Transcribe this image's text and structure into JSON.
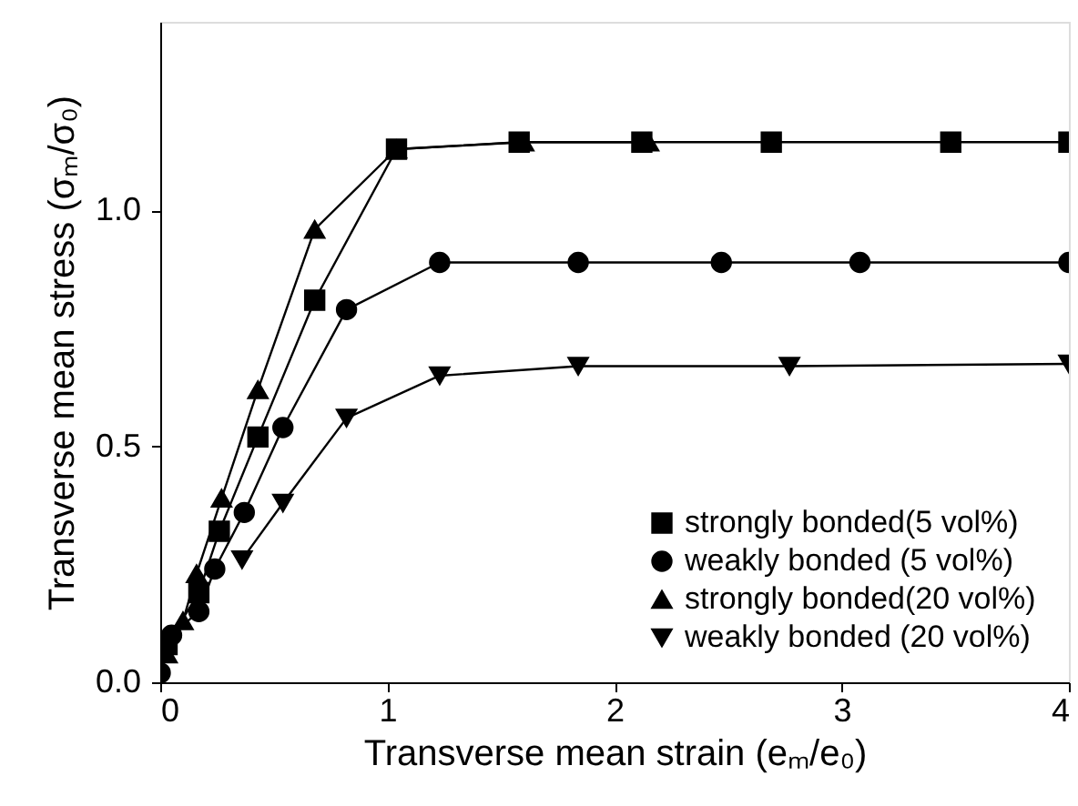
{
  "chart_data": {
    "type": "line",
    "xlabel": "Transverse mean strain (eₘ/e₀)",
    "ylabel": "Transverse mean stress (σₘ/σ₀)",
    "xlim": [
      0,
      4
    ],
    "ylim": [
      0,
      1.4
    ],
    "xticks": [
      0,
      1,
      2,
      3,
      4
    ],
    "yticks": [
      {
        "value": 0,
        "label": "0.0"
      },
      {
        "value": 0.5,
        "label": "0.5"
      },
      {
        "value": 1,
        "label": "1.0"
      }
    ],
    "grid": false,
    "legend": "bottom right",
    "line_style": "solid",
    "series": [
      {
        "name": "strongly bonded(5 vol%)",
        "color": "#000000",
        "marker": "square",
        "x": [
          0.03,
          0.17,
          0.26,
          0.43,
          0.68,
          1.04,
          1.58,
          2.12,
          2.69,
          3.48,
          4.0
        ],
        "values": [
          0.08,
          0.19,
          0.32,
          0.52,
          0.81,
          1.13,
          1.145,
          1.145,
          1.145,
          1.145,
          1.145
        ]
      },
      {
        "name": "weakly bonded  (5 vol%)",
        "color": "#000000",
        "marker": "circle",
        "x": [
          0,
          0.05,
          0.17,
          0.24,
          0.37,
          0.54,
          0.82,
          1.23,
          1.84,
          2.47,
          3.08,
          4.0
        ],
        "values": [
          0.02,
          0.1,
          0.15,
          0.24,
          0.36,
          0.54,
          0.79,
          0.89,
          0.89,
          0.89,
          0.89,
          0.89
        ]
      },
      {
        "name": "strongly bonded(20 vol%)",
        "color": "#000000",
        "marker": "triangle",
        "x": [
          0.03,
          0.1,
          0.16,
          0.27,
          0.43,
          0.68,
          1.04,
          1.6,
          2.15
        ],
        "values": [
          0.06,
          0.13,
          0.23,
          0.39,
          0.62,
          0.96,
          1.13,
          1.145,
          1.145
        ]
      },
      {
        "name": "weakly bonded  (20 vol%)",
        "color": "#000000",
        "marker": "triangle-down",
        "x": [
          0.36,
          0.54,
          0.82,
          1.23,
          1.84,
          2.77,
          4.0
        ],
        "values": [
          0.26,
          0.38,
          0.56,
          0.65,
          0.67,
          0.67,
          0.675
        ]
      }
    ]
  }
}
